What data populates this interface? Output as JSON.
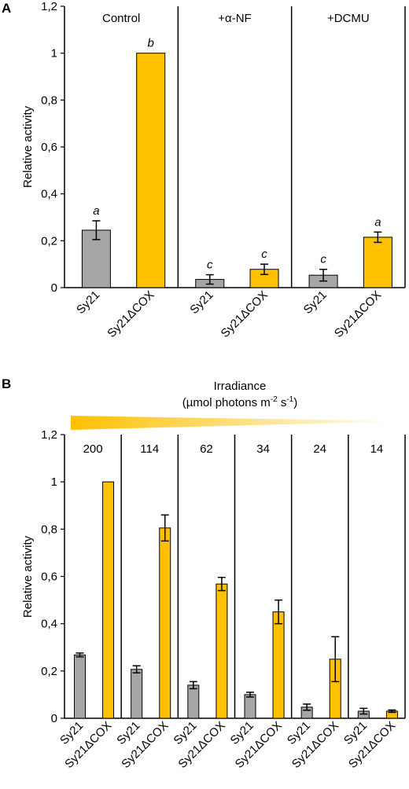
{
  "chart_data": [
    {
      "panel": "A",
      "type": "bar",
      "ylabel": "Relative activity",
      "ylim": [
        0,
        1.2
      ],
      "yticks": [
        "0",
        "0,2",
        "0,4",
        "0,6",
        "0,8",
        "1",
        "1,2"
      ],
      "groups": [
        {
          "label": "Control",
          "bars": [
            {
              "category": "Sy21",
              "value": 0.245,
              "error": 0.04,
              "sig": "a",
              "color": "#a6a6a6"
            },
            {
              "category": "Sy21ΔCOX",
              "value": 1.0,
              "error": 0.0,
              "sig": "b",
              "color": "#ffc000"
            }
          ]
        },
        {
          "label": "+α-NF",
          "bars": [
            {
              "category": "Sy21",
              "value": 0.035,
              "error": 0.02,
              "sig": "c",
              "color": "#a6a6a6"
            },
            {
              "category": "Sy21ΔCOX",
              "value": 0.078,
              "error": 0.022,
              "sig": "c",
              "color": "#ffc000"
            }
          ]
        },
        {
          "label": "+DCMU",
          "bars": [
            {
              "category": "Sy21",
              "value": 0.053,
              "error": 0.025,
              "sig": "c",
              "color": "#a6a6a6"
            },
            {
              "category": "Sy21ΔCOX",
              "value": 0.215,
              "error": 0.022,
              "sig": "a",
              "color": "#ffc000"
            }
          ]
        }
      ]
    },
    {
      "panel": "B",
      "type": "bar",
      "title": "Irradiance",
      "subtitle_prefix": "(µmol photons m",
      "subtitle_sup1": "-2",
      "subtitle_mid": " s",
      "subtitle_sup2": "-1",
      "subtitle_suffix": ")",
      "ylabel": "Relative activity",
      "ylim": [
        0,
        1.2
      ],
      "yticks": [
        "0",
        "0,2",
        "0,4",
        "0,6",
        "0,8",
        "1",
        "1,2"
      ],
      "groups": [
        {
          "label": "200",
          "bars": [
            {
              "category": "Sy21",
              "value": 0.268,
              "error": 0.008,
              "color": "#a6a6a6"
            },
            {
              "category": "Sy21ΔCOX",
              "value": 1.0,
              "error": 0.0,
              "color": "#ffc000"
            }
          ]
        },
        {
          "label": "114",
          "bars": [
            {
              "category": "Sy21",
              "value": 0.207,
              "error": 0.015,
              "color": "#a6a6a6"
            },
            {
              "category": "Sy21ΔCOX",
              "value": 0.805,
              "error": 0.055,
              "color": "#ffc000"
            }
          ]
        },
        {
          "label": "62",
          "bars": [
            {
              "category": "Sy21",
              "value": 0.14,
              "error": 0.015,
              "color": "#a6a6a6"
            },
            {
              "category": "Sy21ΔCOX",
              "value": 0.568,
              "error": 0.028,
              "color": "#ffc000"
            }
          ]
        },
        {
          "label": "34",
          "bars": [
            {
              "category": "Sy21",
              "value": 0.1,
              "error": 0.01,
              "color": "#a6a6a6"
            },
            {
              "category": "Sy21ΔCOX",
              "value": 0.45,
              "error": 0.05,
              "color": "#ffc000"
            }
          ]
        },
        {
          "label": "24",
          "bars": [
            {
              "category": "Sy21",
              "value": 0.047,
              "error": 0.013,
              "color": "#a6a6a6"
            },
            {
              "category": "Sy21ΔCOX",
              "value": 0.25,
              "error": 0.095,
              "color": "#ffc000"
            }
          ]
        },
        {
          "label": "14",
          "bars": [
            {
              "category": "Sy21",
              "value": 0.03,
              "error": 0.012,
              "color": "#a6a6a6"
            },
            {
              "category": "Sy21ΔCOX",
              "value": 0.03,
              "error": 0.005,
              "color": "#ffc000"
            }
          ]
        }
      ]
    }
  ]
}
